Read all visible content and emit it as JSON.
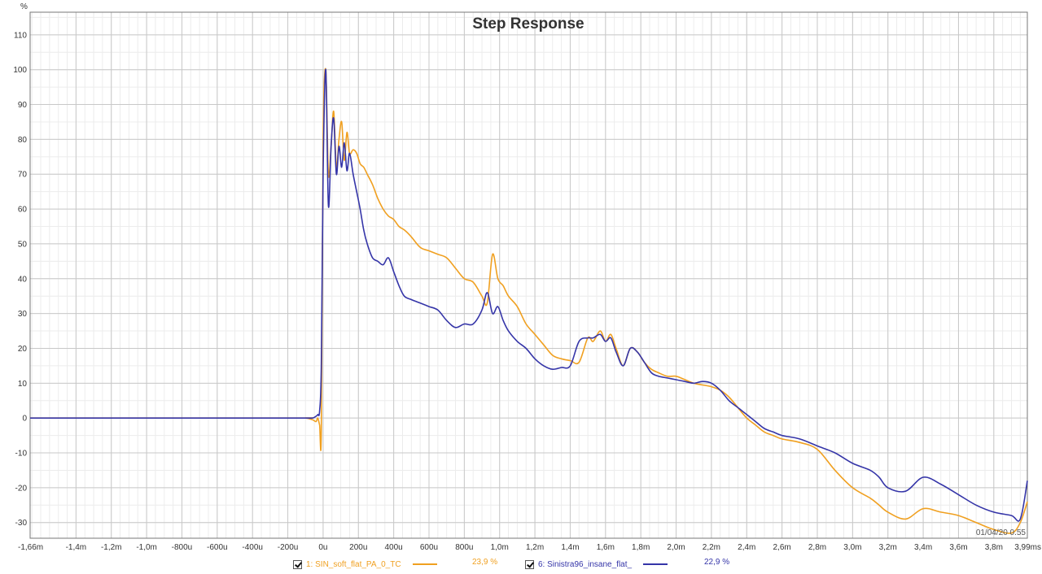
{
  "chart_data": {
    "type": "line",
    "title": "Step Response",
    "y_unit": "%",
    "ylim": [
      -34.5,
      116.5
    ],
    "xlim": [
      -1.66,
      3.99
    ],
    "x_unit": "ms",
    "grid": true,
    "legend_position": "bottom",
    "y_ticks": [
      {
        "value": 110,
        "label": "110"
      },
      {
        "value": 100,
        "label": "100"
      },
      {
        "value": 90,
        "label": "90"
      },
      {
        "value": 80,
        "label": "80"
      },
      {
        "value": 70,
        "label": "70"
      },
      {
        "value": 60,
        "label": "60"
      },
      {
        "value": 50,
        "label": "50"
      },
      {
        "value": 40,
        "label": "40"
      },
      {
        "value": 30,
        "label": "30"
      },
      {
        "value": 20,
        "label": "20"
      },
      {
        "value": 10,
        "label": "10"
      },
      {
        "value": 0,
        "label": "0"
      },
      {
        "value": -10,
        "label": "-10"
      },
      {
        "value": -20,
        "label": "-20"
      },
      {
        "value": -30,
        "label": "-30"
      }
    ],
    "x_ticks": [
      {
        "value": -1.66,
        "label": "-1,66m"
      },
      {
        "value": -1.4,
        "label": "-1,4m"
      },
      {
        "value": -1.2,
        "label": "-1,2m"
      },
      {
        "value": -1.0,
        "label": "-1,0m"
      },
      {
        "value": -0.8,
        "label": "-800u"
      },
      {
        "value": -0.6,
        "label": "-600u"
      },
      {
        "value": -0.4,
        "label": "-400u"
      },
      {
        "value": -0.2,
        "label": "-200u"
      },
      {
        "value": 0.0,
        "label": "0u"
      },
      {
        "value": 0.2,
        "label": "200u"
      },
      {
        "value": 0.4,
        "label": "400u"
      },
      {
        "value": 0.6,
        "label": "600u"
      },
      {
        "value": 0.8,
        "label": "800u"
      },
      {
        "value": 1.0,
        "label": "1,0m"
      },
      {
        "value": 1.2,
        "label": "1,2m"
      },
      {
        "value": 1.4,
        "label": "1,4m"
      },
      {
        "value": 1.6,
        "label": "1,6m"
      },
      {
        "value": 1.8,
        "label": "1,8m"
      },
      {
        "value": 2.0,
        "label": "2,0m"
      },
      {
        "value": 2.2,
        "label": "2,2m"
      },
      {
        "value": 2.4,
        "label": "2,4m"
      },
      {
        "value": 2.6,
        "label": "2,6m"
      },
      {
        "value": 2.8,
        "label": "2,8m"
      },
      {
        "value": 3.0,
        "label": "3,0m"
      },
      {
        "value": 3.2,
        "label": "3,2m"
      },
      {
        "value": 3.4,
        "label": "3,4m"
      },
      {
        "value": 3.6,
        "label": "3,6m"
      },
      {
        "value": 3.8,
        "label": "3,8m"
      },
      {
        "value": 3.99,
        "label": "3,99ms"
      }
    ],
    "series": [
      {
        "name": "1: SIN_soft_flat_PA_0_TC",
        "percent": "23,9 %",
        "color": "#f0a020",
        "x": [
          -1.66,
          -0.2,
          -0.1,
          -0.06,
          -0.04,
          -0.03,
          -0.02,
          -0.01,
          0.0,
          0.015,
          0.03,
          0.045,
          0.06,
          0.075,
          0.09,
          0.105,
          0.12,
          0.135,
          0.15,
          0.17,
          0.19,
          0.21,
          0.23,
          0.25,
          0.28,
          0.31,
          0.34,
          0.37,
          0.4,
          0.43,
          0.46,
          0.5,
          0.55,
          0.6,
          0.65,
          0.7,
          0.75,
          0.8,
          0.85,
          0.9,
          0.93,
          0.96,
          0.99,
          1.02,
          1.05,
          1.1,
          1.15,
          1.2,
          1.25,
          1.3,
          1.35,
          1.4,
          1.45,
          1.5,
          1.53,
          1.57,
          1.6,
          1.63,
          1.66,
          1.7,
          1.74,
          1.78,
          1.82,
          1.86,
          1.9,
          1.95,
          2.0,
          2.05,
          2.1,
          2.15,
          2.2,
          2.25,
          2.3,
          2.35,
          2.4,
          2.45,
          2.5,
          2.55,
          2.6,
          2.7,
          2.8,
          2.9,
          3.0,
          3.1,
          3.15,
          3.2,
          3.3,
          3.4,
          3.5,
          3.6,
          3.7,
          3.8,
          3.9,
          3.95,
          3.99
        ],
        "y": [
          0,
          0,
          0,
          -0.5,
          -1,
          0,
          -2,
          -3.5,
          80,
          100,
          70,
          78,
          88,
          72,
          80,
          85,
          74,
          82,
          76,
          77,
          76,
          73,
          72,
          70,
          67,
          63,
          60,
          58,
          57,
          55,
          54,
          52,
          49,
          48,
          47,
          46,
          43,
          40,
          39,
          35,
          33,
          47,
          40,
          38,
          35,
          32,
          27,
          24,
          21,
          18,
          17,
          16.5,
          16,
          23,
          22,
          25,
          22,
          24,
          20,
          15,
          20,
          19,
          16,
          14,
          13,
          12,
          12,
          11,
          10,
          9.5,
          9,
          8,
          6,
          3,
          0,
          -2,
          -4,
          -5,
          -6,
          -7,
          -9,
          -15,
          -20,
          -23,
          -25,
          -27,
          -29,
          -26,
          -27,
          -28,
          -30,
          -32,
          -33,
          -30,
          -24
        ]
      },
      {
        "name": "6: Sinistra96_insane_flat_",
        "percent": "22,9 %",
        "color": "#3535a8",
        "x": [
          -1.66,
          -0.2,
          -0.1,
          -0.06,
          -0.04,
          -0.03,
          -0.02,
          -0.01,
          0.0,
          0.015,
          0.03,
          0.045,
          0.06,
          0.075,
          0.09,
          0.105,
          0.12,
          0.135,
          0.15,
          0.17,
          0.19,
          0.21,
          0.23,
          0.25,
          0.28,
          0.31,
          0.34,
          0.37,
          0.4,
          0.43,
          0.46,
          0.5,
          0.55,
          0.6,
          0.65,
          0.7,
          0.75,
          0.8,
          0.85,
          0.9,
          0.93,
          0.96,
          0.99,
          1.02,
          1.05,
          1.1,
          1.15,
          1.2,
          1.25,
          1.3,
          1.35,
          1.4,
          1.45,
          1.5,
          1.53,
          1.57,
          1.6,
          1.63,
          1.66,
          1.7,
          1.74,
          1.78,
          1.82,
          1.86,
          1.9,
          1.95,
          2.0,
          2.05,
          2.1,
          2.15,
          2.2,
          2.25,
          2.3,
          2.35,
          2.4,
          2.45,
          2.5,
          2.55,
          2.6,
          2.7,
          2.8,
          2.9,
          3.0,
          3.1,
          3.15,
          3.2,
          3.3,
          3.4,
          3.5,
          3.6,
          3.7,
          3.8,
          3.9,
          3.95,
          3.99
        ],
        "y": [
          0,
          0,
          0,
          0,
          0.5,
          1,
          2,
          15,
          70,
          100,
          61,
          78,
          86,
          70,
          78,
          72,
          79,
          71,
          76,
          70,
          65,
          60,
          54,
          50,
          46,
          45,
          44,
          46,
          42,
          38,
          35,
          34,
          33,
          32,
          31,
          28,
          26,
          27,
          27,
          31,
          36,
          30,
          32,
          28,
          25,
          22,
          20,
          17,
          15,
          14,
          14.5,
          15,
          22,
          23,
          23,
          24,
          22,
          23,
          19,
          15,
          20,
          19,
          16,
          13,
          12,
          11.5,
          11,
          10.5,
          10,
          10.5,
          10,
          8,
          5,
          3,
          1,
          -1,
          -3,
          -4,
          -5,
          -6,
          -8,
          -10,
          -13,
          -15,
          -17,
          -20,
          -21,
          -17,
          -19,
          -22,
          -25,
          -27,
          -28,
          -29,
          -18
        ]
      }
    ],
    "stamp": "01/04/20 0.55"
  }
}
